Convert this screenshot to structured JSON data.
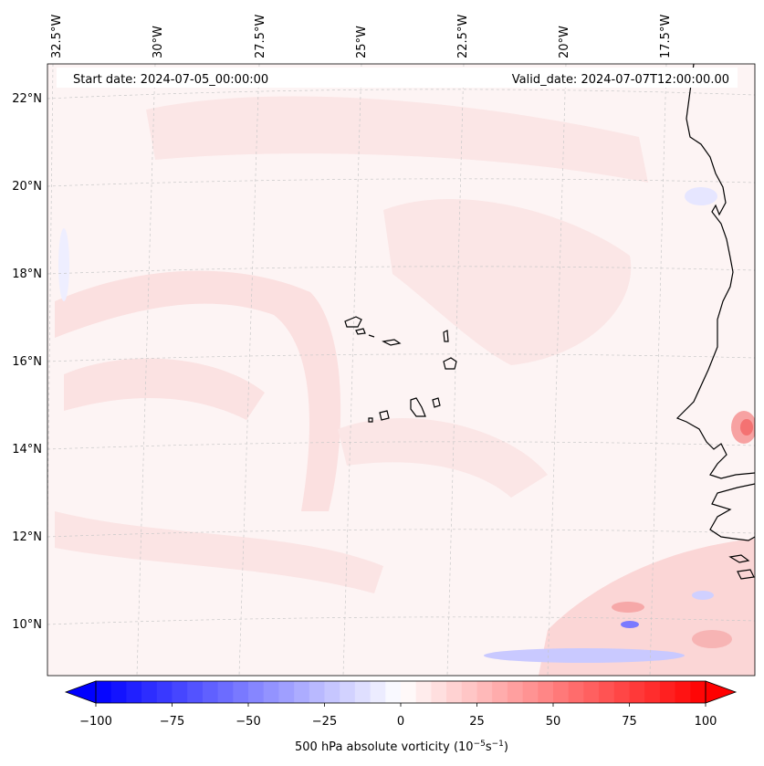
{
  "header": {
    "start_date": "Start date: 2024-07-05_00:00:00",
    "valid_date": "Valid_date: 2024-07-07T12:00:00.00"
  },
  "map": {
    "longitude_labels": [
      "32.5°W",
      "30°W",
      "27.5°W",
      "25°W",
      "22.5°W",
      "20°W",
      "17.5°W"
    ],
    "latitude_labels": [
      "22°N",
      "20°N",
      "18°N",
      "16°N",
      "14°N",
      "12°N",
      "10°N"
    ],
    "colors": {
      "background": "#fdf4f4",
      "pink_band": "#fbe0e0",
      "red_strong": "#f47272",
      "blue_faint": "#e6e6ff",
      "blue_mid": "#a8a8ff",
      "coastline": "#000000",
      "gridline": "#c8c8c8"
    }
  },
  "colorbar": {
    "ticks": [
      "−100",
      "−75",
      "−50",
      "−25",
      "0",
      "25",
      "50",
      "75",
      "100"
    ],
    "tick_values": [
      -100,
      -75,
      -50,
      -25,
      0,
      25,
      50,
      75,
      100
    ],
    "range": [
      -100,
      100
    ],
    "label_text": "500 hPa absolute vorticity (10",
    "label_exp1": "−5",
    "label_mid": "s",
    "label_exp2": "−1",
    "label_end": ")",
    "colors": {
      "min": "#0000ff",
      "mid": "#ffffff",
      "max": "#ff0000"
    }
  }
}
